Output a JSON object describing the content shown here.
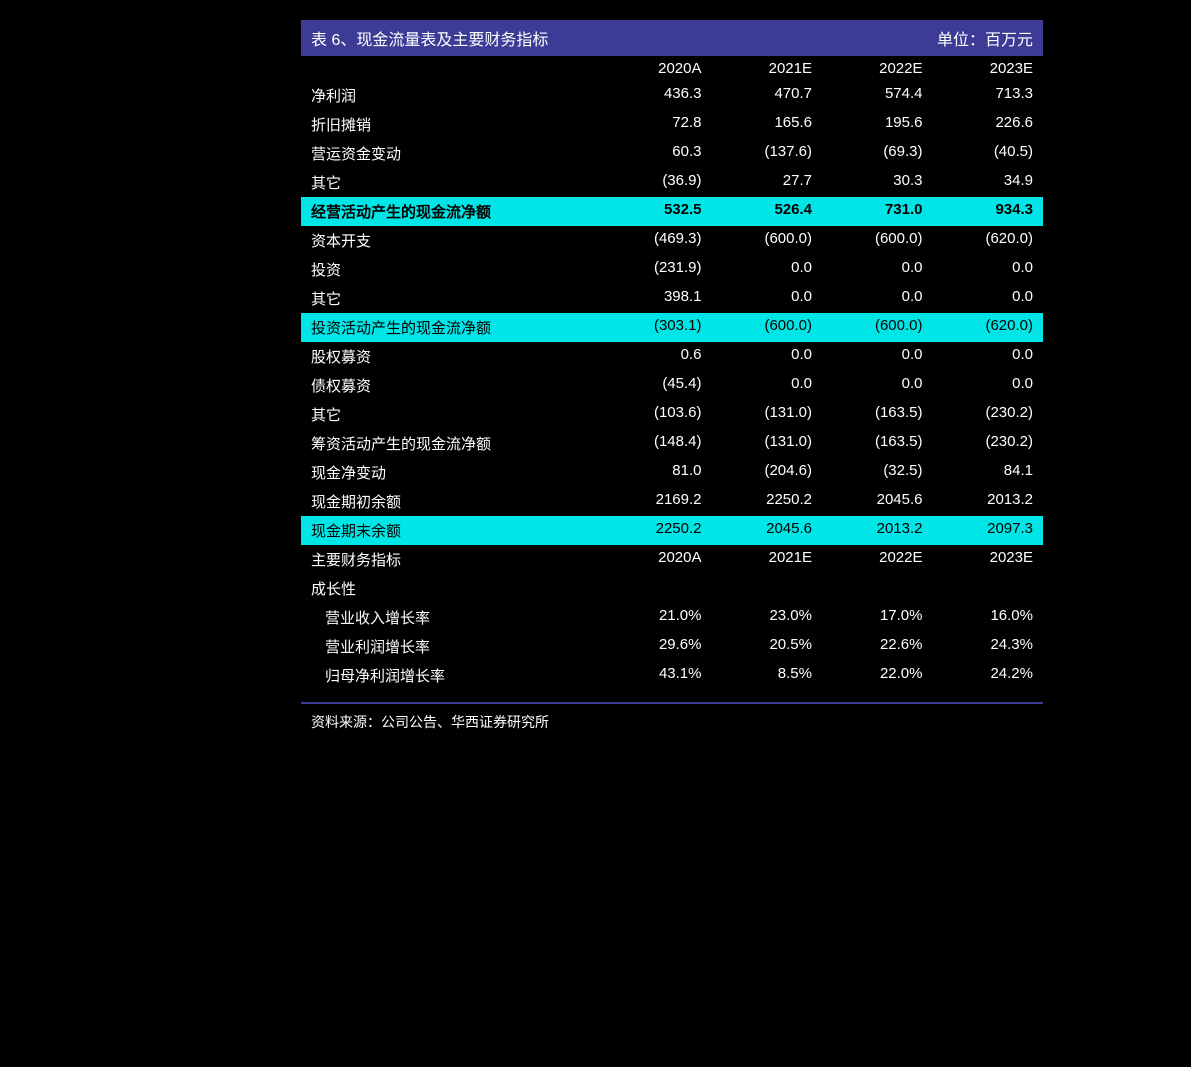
{
  "header": {
    "title": "表 6、现金流量表及主要财务指标",
    "unit": "单位：百万元"
  },
  "colors": {
    "header_bg": "#3c3c96",
    "highlight_bg": "#00e5e5",
    "page_bg": "#000000",
    "text_light": "#ffffff",
    "text_dark": "#000000"
  },
  "years": [
    "2020A",
    "2021E",
    "2022E",
    "2023E"
  ],
  "rows": [
    {
      "label": "净利润",
      "values": [
        "436.3",
        "470.7",
        "574.4",
        "713.3"
      ],
      "highlight": false,
      "bold": false,
      "indent": false
    },
    {
      "label": "折旧摊销",
      "values": [
        "72.8",
        "165.6",
        "195.6",
        "226.6"
      ],
      "highlight": false,
      "bold": false,
      "indent": false
    },
    {
      "label": "营运资金变动",
      "values": [
        "60.3",
        "(137.6)",
        "(69.3)",
        "(40.5)"
      ],
      "highlight": false,
      "bold": false,
      "indent": false
    },
    {
      "label": "其它",
      "values": [
        "(36.9)",
        "27.7",
        "30.3",
        "34.9"
      ],
      "highlight": false,
      "bold": false,
      "indent": false
    },
    {
      "label": "经营活动产生的现金流净额",
      "values": [
        "532.5",
        "526.4",
        "731.0",
        "934.3"
      ],
      "highlight": true,
      "bold": true,
      "indent": false
    },
    {
      "label": "资本开支",
      "values": [
        "(469.3)",
        "(600.0)",
        "(600.0)",
        "(620.0)"
      ],
      "highlight": false,
      "bold": false,
      "indent": false
    },
    {
      "label": "投资",
      "values": [
        "(231.9)",
        "0.0",
        "0.0",
        "0.0"
      ],
      "highlight": false,
      "bold": false,
      "indent": false
    },
    {
      "label": "其它",
      "values": [
        "398.1",
        "0.0",
        "0.0",
        "0.0"
      ],
      "highlight": false,
      "bold": false,
      "indent": false
    },
    {
      "label": "投资活动产生的现金流净额",
      "values": [
        "(303.1)",
        "(600.0)",
        "(600.0)",
        "(620.0)"
      ],
      "highlight": true,
      "bold": false,
      "indent": false
    },
    {
      "label": "股权募资",
      "values": [
        "0.6",
        "0.0",
        "0.0",
        "0.0"
      ],
      "highlight": false,
      "bold": false,
      "indent": false
    },
    {
      "label": "债权募资",
      "values": [
        "(45.4)",
        "0.0",
        "0.0",
        "0.0"
      ],
      "highlight": false,
      "bold": false,
      "indent": false
    },
    {
      "label": "其它",
      "values": [
        "(103.6)",
        "(131.0)",
        "(163.5)",
        "(230.2)"
      ],
      "highlight": false,
      "bold": false,
      "indent": false
    },
    {
      "label": "筹资活动产生的现金流净额",
      "values": [
        "(148.4)",
        "(131.0)",
        "(163.5)",
        "(230.2)"
      ],
      "highlight": false,
      "bold": false,
      "indent": false
    },
    {
      "label": "现金净变动",
      "values": [
        "81.0",
        "(204.6)",
        "(32.5)",
        "84.1"
      ],
      "highlight": false,
      "bold": false,
      "indent": false
    },
    {
      "label": "现金期初余额",
      "values": [
        "2169.2",
        "2250.2",
        "2045.6",
        "2013.2"
      ],
      "highlight": false,
      "bold": false,
      "indent": false
    },
    {
      "label": "现金期末余额",
      "values": [
        "2250.2",
        "2045.6",
        "2013.2",
        "2097.3"
      ],
      "highlight": true,
      "bold": false,
      "indent": false
    },
    {
      "label": "主要财务指标",
      "values": [
        "2020A",
        "2021E",
        "2022E",
        "2023E"
      ],
      "highlight": false,
      "bold": false,
      "indent": false
    },
    {
      "label": "成长性",
      "values": [
        "",
        "",
        "",
        ""
      ],
      "highlight": false,
      "bold": false,
      "indent": false
    },
    {
      "label": "营业收入增长率",
      "values": [
        "21.0%",
        "23.0%",
        "17.0%",
        "16.0%"
      ],
      "highlight": false,
      "bold": false,
      "indent": true
    },
    {
      "label": "营业利润增长率",
      "values": [
        "29.6%",
        "20.5%",
        "22.6%",
        "24.3%"
      ],
      "highlight": false,
      "bold": false,
      "indent": true
    },
    {
      "label": "归母净利润增长率",
      "values": [
        "43.1%",
        "8.5%",
        "22.0%",
        "24.2%"
      ],
      "highlight": false,
      "bold": false,
      "indent": true
    }
  ],
  "source": "资料来源：公司公告、华西证券研究所"
}
